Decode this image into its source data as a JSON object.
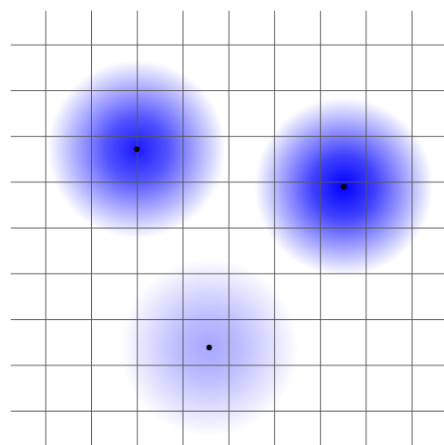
{
  "chart_data": {
    "type": "scatter",
    "x": [
      2.99,
      7.51,
      4.57
    ],
    "series": [
      {
        "color": "#0000ff",
        "values": [
          5.72,
          4.9,
          1.39
        ],
        "sizes": [
          1.95,
          1.95,
          1.95
        ],
        "intensity": [
          0.9,
          1.0,
          0.35
        ]
      }
    ],
    "xlim": [
      0,
      9.7
    ],
    "ylim": [
      -0.74,
      8.98
    ],
    "xticks": [
      1,
      2,
      3,
      4,
      5,
      6,
      7,
      8,
      9
    ],
    "yticks": [
      0,
      1,
      2,
      3,
      4,
      5,
      6,
      7,
      8
    ],
    "grid": true,
    "grid_color": "#555555",
    "point_color": "#000000"
  }
}
